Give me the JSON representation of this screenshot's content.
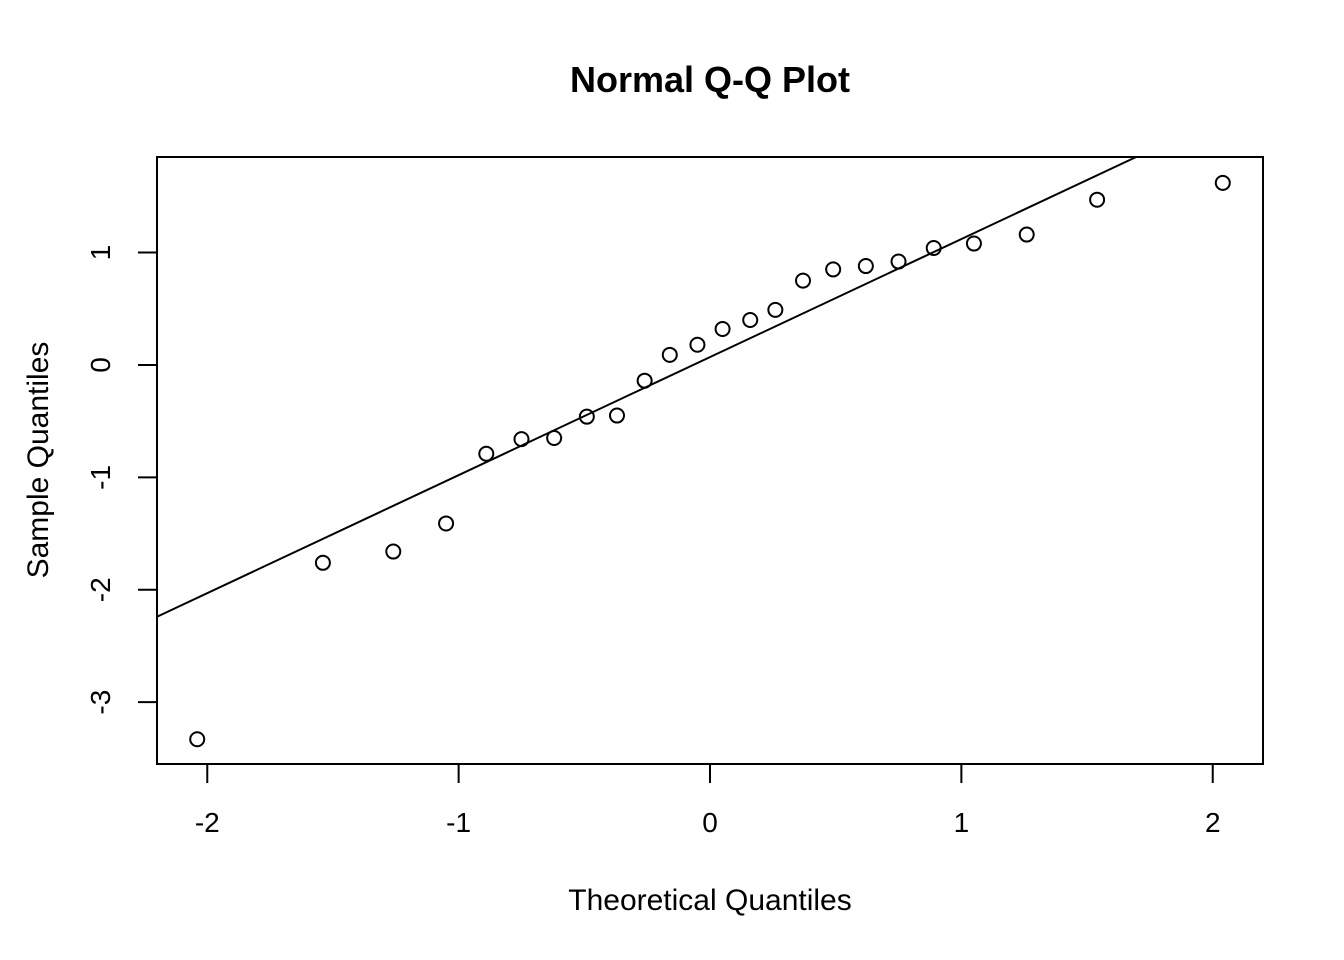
{
  "chart_data": {
    "type": "scatter",
    "title": "Normal Q-Q Plot",
    "xlabel": "Theoretical Quantiles",
    "ylabel": "Sample Quantiles",
    "xlim": [
      -2.2,
      2.2
    ],
    "ylim": [
      -3.55,
      1.85
    ],
    "x_ticks": [
      -2,
      -1,
      0,
      1,
      2
    ],
    "x_tick_labels": [
      "-2",
      "-1",
      "0",
      "1",
      "2"
    ],
    "y_ticks": [
      -3,
      -2,
      -1,
      0,
      1
    ],
    "y_tick_labels": [
      "-3",
      "-2",
      "-1",
      "0",
      "1"
    ],
    "grid": false,
    "points": {
      "x": [
        -2.04,
        -1.54,
        -1.26,
        -1.05,
        -0.89,
        -0.75,
        -0.62,
        -0.49,
        -0.37,
        -0.26,
        -0.16,
        -0.05,
        0.05,
        0.16,
        0.26,
        0.37,
        0.49,
        0.62,
        0.75,
        0.89,
        1.05,
        1.26,
        1.54,
        2.04
      ],
      "y": [
        -3.33,
        -1.76,
        -1.66,
        -1.41,
        -0.79,
        -0.66,
        -0.65,
        -0.46,
        -0.45,
        -0.14,
        0.09,
        0.18,
        0.32,
        0.4,
        0.49,
        0.75,
        0.85,
        0.88,
        0.92,
        1.04,
        1.08,
        1.16,
        1.47,
        1.62
      ]
    },
    "reference_line": {
      "intercept": 0.07,
      "slope": 1.05
    }
  }
}
